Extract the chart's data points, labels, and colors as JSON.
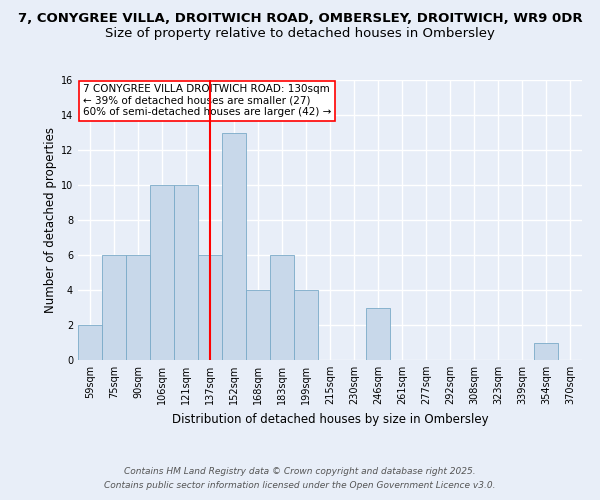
{
  "title_line1": "7, CONYGREE VILLA, DROITWICH ROAD, OMBERSLEY, DROITWICH, WR9 0DR",
  "title_line2": "Size of property relative to detached houses in Ombersley",
  "xlabel": "Distribution of detached houses by size in Ombersley",
  "ylabel": "Number of detached properties",
  "bar_labels": [
    "59sqm",
    "75sqm",
    "90sqm",
    "106sqm",
    "121sqm",
    "137sqm",
    "152sqm",
    "168sqm",
    "183sqm",
    "199sqm",
    "215sqm",
    "230sqm",
    "246sqm",
    "261sqm",
    "277sqm",
    "292sqm",
    "308sqm",
    "323sqm",
    "339sqm",
    "354sqm",
    "370sqm"
  ],
  "bar_values": [
    2,
    6,
    6,
    10,
    10,
    6,
    13,
    4,
    6,
    4,
    0,
    0,
    3,
    0,
    0,
    0,
    0,
    0,
    0,
    1,
    0
  ],
  "bar_color": "#c8d8ea",
  "bar_edgecolor": "#7aaac8",
  "vline_x": 5.0,
  "vline_color": "red",
  "annotation_text": "7 CONYGREE VILLA DROITWICH ROAD: 130sqm\n← 39% of detached houses are smaller (27)\n60% of semi-detached houses are larger (42) →",
  "annotation_box_color": "white",
  "annotation_box_edgecolor": "red",
  "ylim": [
    0,
    16
  ],
  "yticks": [
    0,
    2,
    4,
    6,
    8,
    10,
    12,
    14,
    16
  ],
  "footer_line1": "Contains HM Land Registry data © Crown copyright and database right 2025.",
  "footer_line2": "Contains public sector information licensed under the Open Government Licence v3.0.",
  "bg_color": "#e8eef8",
  "plot_bg_color": "#e8eef8",
  "grid_color": "white",
  "title_fontsize": 9.5,
  "subtitle_fontsize": 9.5,
  "tick_fontsize": 7,
  "ylabel_fontsize": 8.5,
  "xlabel_fontsize": 8.5,
  "footer_fontsize": 6.5,
  "annotation_fontsize": 7.5
}
